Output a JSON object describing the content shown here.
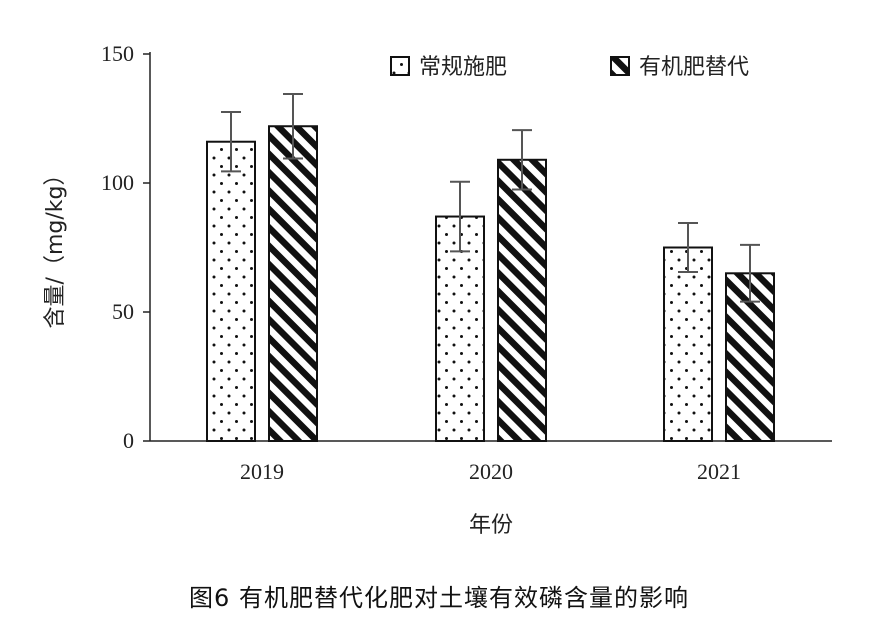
{
  "caption": "图6 有机肥替代化肥对土壤有效磷含量的影响",
  "chart_data": {
    "type": "bar",
    "categories": [
      "2019",
      "2020",
      "2021"
    ],
    "series": [
      {
        "name": "常规施肥",
        "values": [
          116,
          87,
          75
        ],
        "errors": [
          11.5,
          13.5,
          9.5
        ],
        "pattern": "dots"
      },
      {
        "name": "有机肥替代",
        "values": [
          122,
          109,
          65
        ],
        "errors": [
          12.5,
          11.5,
          11
        ],
        "pattern": "diagonal-hatch"
      }
    ],
    "xlabel": "年份",
    "ylabel": "含量/（mg/kg）",
    "ylim": [
      0,
      150
    ],
    "yticks": [
      0,
      50,
      100,
      150
    ],
    "legend_position": "top-right",
    "grid": false
  }
}
